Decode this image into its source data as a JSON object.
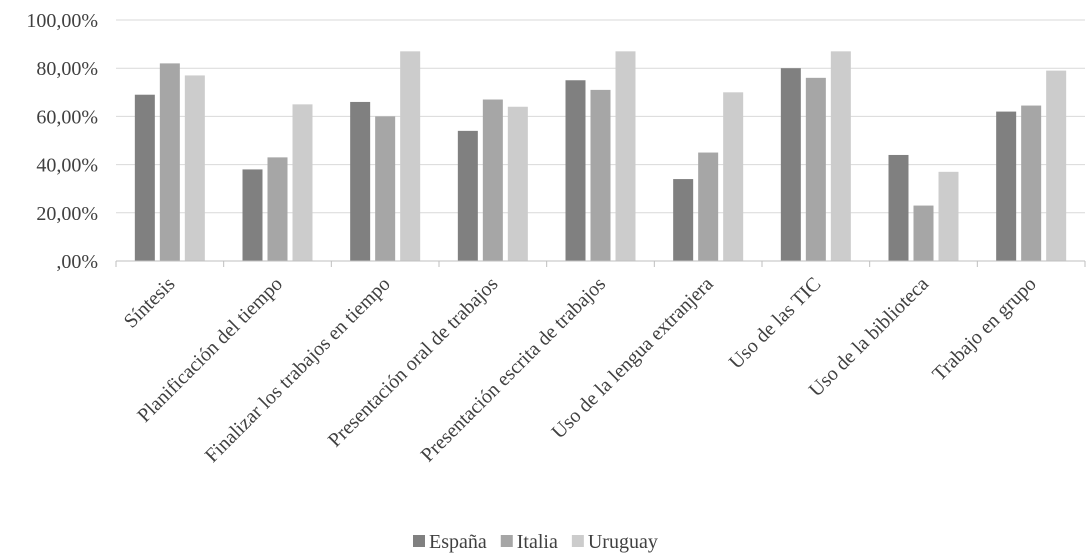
{
  "chart_data": {
    "type": "bar",
    "title": "",
    "xlabel": "",
    "ylabel": "",
    "ylim": [
      0,
      100
    ],
    "yticks": [
      0,
      20,
      40,
      60,
      80,
      100
    ],
    "ytick_labels": [
      ",00%",
      "20,00%",
      "40,00%",
      "60,00%",
      "80,00%",
      "100,00%"
    ],
    "categories": [
      "Síntesis",
      "Planificación del tiempo",
      "Finalizar los trabajos en tiempo",
      "Presentación oral de trabajos",
      "Presentación escrita de trabajos",
      "Uso de la lengua extranjera",
      "Uso de las TIC",
      "Uso de la biblioteca",
      "Trabajo en grupo"
    ],
    "series": [
      {
        "name": "España",
        "color": "#808080",
        "values": [
          69,
          38,
          66,
          54,
          75,
          34,
          80,
          44,
          62
        ]
      },
      {
        "name": "Italia",
        "color": "#a6a6a6",
        "values": [
          82,
          43,
          60,
          67,
          71,
          45,
          76,
          23,
          64.5
        ]
      },
      {
        "name": "Uruguay",
        "color": "#cccccc",
        "values": [
          77,
          65,
          87,
          64,
          87,
          70,
          87,
          37,
          79
        ]
      }
    ],
    "grid": true,
    "legend_position": "bottom-center"
  }
}
